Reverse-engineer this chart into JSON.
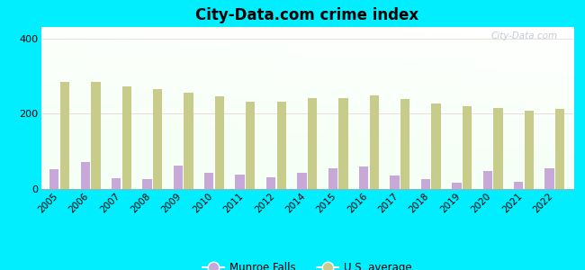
{
  "title": "City-Data.com crime index",
  "years": [
    2005,
    2006,
    2007,
    2008,
    2009,
    2010,
    2011,
    2012,
    2014,
    2015,
    2016,
    2017,
    2018,
    2019,
    2020,
    2021,
    2022
  ],
  "munroe_falls": [
    52,
    72,
    28,
    27,
    62,
    42,
    38,
    32,
    42,
    55,
    60,
    36,
    26,
    16,
    48,
    20,
    55
  ],
  "us_average": [
    285,
    285,
    272,
    265,
    255,
    245,
    232,
    232,
    242,
    242,
    248,
    238,
    228,
    220,
    215,
    208,
    213
  ],
  "munroe_color": "#c8a8d8",
  "us_color": "#c8cc8a",
  "background_color": "#00eeff",
  "ylim": [
    0,
    430
  ],
  "yticks": [
    0,
    200,
    400
  ],
  "legend_labels": [
    "Munroe Falls",
    "U.S. average"
  ],
  "watermark": "City-Data.com"
}
